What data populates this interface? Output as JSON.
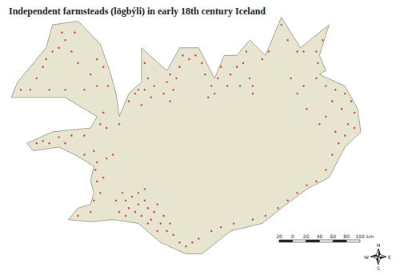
{
  "chart_data": {
    "type": "map",
    "title": "Independent farmsteads (lögbýli) in early 18th century Iceland",
    "xlim": [
      -24.6,
      -13.4
    ],
    "ylim": [
      63.25,
      66.6
    ],
    "tick_labels": false,
    "color": "#c81e2a",
    "coastline": [
      [
        -22.7,
        63.85
      ],
      [
        -22.4,
        64.0
      ],
      [
        -22.0,
        64.05
      ],
      [
        -21.9,
        64.2
      ],
      [
        -22.0,
        64.35
      ],
      [
        -21.9,
        64.55
      ],
      [
        -22.5,
        64.7
      ],
      [
        -23.0,
        64.8
      ],
      [
        -23.8,
        64.75
      ],
      [
        -24.0,
        64.85
      ],
      [
        -23.2,
        65.0
      ],
      [
        -22.0,
        65.05
      ],
      [
        -21.8,
        65.2
      ],
      [
        -22.8,
        65.45
      ],
      [
        -24.5,
        65.45
      ],
      [
        -24.3,
        65.65
      ],
      [
        -23.8,
        65.9
      ],
      [
        -23.4,
        66.1
      ],
      [
        -23.2,
        66.4
      ],
      [
        -22.4,
        66.45
      ],
      [
        -21.7,
        66.15
      ],
      [
        -21.4,
        65.8
      ],
      [
        -21.2,
        65.5
      ],
      [
        -21.1,
        65.2
      ],
      [
        -20.8,
        65.5
      ],
      [
        -20.4,
        65.65
      ],
      [
        -20.4,
        66.1
      ],
      [
        -19.6,
        65.8
      ],
      [
        -19.2,
        66.1
      ],
      [
        -18.6,
        66.1
      ],
      [
        -18.1,
        65.7
      ],
      [
        -17.8,
        66.0
      ],
      [
        -17.4,
        66.0
      ],
      [
        -17.0,
        66.2
      ],
      [
        -16.5,
        66.0
      ],
      [
        -16.0,
        66.5
      ],
      [
        -15.4,
        66.1
      ],
      [
        -14.5,
        66.4
      ],
      [
        -14.8,
        66.0
      ],
      [
        -14.6,
        65.8
      ],
      [
        -14.8,
        65.75
      ],
      [
        -14.0,
        65.6
      ],
      [
        -13.6,
        65.3
      ],
      [
        -13.5,
        65.0
      ],
      [
        -14.0,
        64.8
      ],
      [
        -14.5,
        64.4
      ],
      [
        -15.2,
        64.25
      ],
      [
        -16.0,
        64.0
      ],
      [
        -16.6,
        63.8
      ],
      [
        -17.6,
        63.7
      ],
      [
        -18.5,
        63.4
      ],
      [
        -19.0,
        63.4
      ],
      [
        -19.8,
        63.55
      ],
      [
        -20.5,
        63.8
      ],
      [
        -21.3,
        63.85
      ],
      [
        -22.0,
        63.82
      ]
    ],
    "farmsteads": [
      [
        -21.1,
        63.95
      ],
      [
        -20.9,
        63.9
      ],
      [
        -20.8,
        64.0
      ],
      [
        -20.6,
        63.95
      ],
      [
        -20.5,
        64.05
      ],
      [
        -20.4,
        63.9
      ],
      [
        -20.3,
        64.1
      ],
      [
        -20.2,
        64.0
      ],
      [
        -20.1,
        63.85
      ],
      [
        -20.0,
        63.95
      ],
      [
        -19.9,
        64.05
      ],
      [
        -19.8,
        63.8
      ],
      [
        -19.7,
        63.9
      ],
      [
        -19.6,
        63.7
      ],
      [
        -19.5,
        63.8
      ],
      [
        -19.4,
        63.65
      ],
      [
        -20.7,
        64.15
      ],
      [
        -20.5,
        64.2
      ],
      [
        -20.3,
        64.25
      ],
      [
        -20.9,
        64.1
      ],
      [
        -21.2,
        64.1
      ],
      [
        -21.0,
        64.2
      ],
      [
        -20.2,
        63.8
      ],
      [
        -19.9,
        63.7
      ],
      [
        -19.2,
        63.55
      ],
      [
        -19.0,
        63.5
      ],
      [
        -18.8,
        63.55
      ],
      [
        -18.6,
        63.6
      ],
      [
        -18.2,
        63.7
      ],
      [
        -17.9,
        63.75
      ],
      [
        -17.5,
        63.8
      ],
      [
        -22.4,
        63.9
      ],
      [
        -22.0,
        63.95
      ],
      [
        -21.9,
        64.1
      ],
      [
        -21.7,
        64.2
      ],
      [
        -21.8,
        64.35
      ],
      [
        -21.6,
        64.4
      ],
      [
        -21.85,
        64.5
      ],
      [
        -21.8,
        64.6
      ],
      [
        -21.5,
        64.65
      ],
      [
        -21.3,
        64.7
      ],
      [
        -22.2,
        64.7
      ],
      [
        -21.9,
        64.75
      ],
      [
        -22.8,
        64.85
      ],
      [
        -23.3,
        64.85
      ],
      [
        -23.7,
        64.85
      ],
      [
        -23.5,
        64.88
      ],
      [
        -23.0,
        64.93
      ],
      [
        -22.6,
        64.95
      ],
      [
        -22.2,
        64.95
      ],
      [
        -21.7,
        65.1
      ],
      [
        -21.6,
        65.25
      ],
      [
        -21.5,
        65.05
      ],
      [
        -22.8,
        65.55
      ],
      [
        -23.3,
        65.55
      ],
      [
        -23.9,
        65.55
      ],
      [
        -24.2,
        65.55
      ],
      [
        -23.7,
        65.7
      ],
      [
        -23.5,
        65.85
      ],
      [
        -23.4,
        65.95
      ],
      [
        -23.2,
        66.05
      ],
      [
        -23.0,
        66.1
      ],
      [
        -22.8,
        66.2
      ],
      [
        -22.6,
        66.05
      ],
      [
        -22.4,
        65.9
      ],
      [
        -22.5,
        66.3
      ],
      [
        -22.9,
        66.3
      ],
      [
        -22.0,
        65.75
      ],
      [
        -21.8,
        65.6
      ],
      [
        -22.2,
        65.55
      ],
      [
        -21.45,
        65.6
      ],
      [
        -21.6,
        65.85
      ],
      [
        -21.8,
        65.95
      ],
      [
        -21.1,
        65.1
      ],
      [
        -20.8,
        65.4
      ],
      [
        -20.6,
        65.5
      ],
      [
        -20.4,
        65.35
      ],
      [
        -20.3,
        65.55
      ],
      [
        -20.2,
        65.7
      ],
      [
        -20.5,
        65.55
      ],
      [
        -20.1,
        65.45
      ],
      [
        -20.0,
        65.6
      ],
      [
        -20.3,
        65.9
      ],
      [
        -19.7,
        65.5
      ],
      [
        -19.6,
        65.65
      ],
      [
        -19.5,
        65.75
      ],
      [
        -19.4,
        65.55
      ],
      [
        -19.3,
        65.7
      ],
      [
        -19.2,
        65.85
      ],
      [
        -19.5,
        65.4
      ],
      [
        -19.1,
        66.0
      ],
      [
        -18.9,
        65.95
      ],
      [
        -18.7,
        66.0
      ],
      [
        -18.5,
        65.9
      ],
      [
        -18.4,
        65.75
      ],
      [
        -18.2,
        65.6
      ],
      [
        -18.1,
        65.5
      ],
      [
        -18.3,
        65.45
      ],
      [
        -18.0,
        65.7
      ],
      [
        -17.9,
        65.85
      ],
      [
        -17.7,
        65.6
      ],
      [
        -17.6,
        65.75
      ],
      [
        -17.4,
        65.85
      ],
      [
        -17.3,
        65.6
      ],
      [
        -17.2,
        65.9
      ],
      [
        -17.0,
        65.7
      ],
      [
        -16.9,
        65.5
      ],
      [
        -17.1,
        66.05
      ],
      [
        -16.9,
        65.6
      ],
      [
        -16.6,
        65.95
      ],
      [
        -16.4,
        66.05
      ],
      [
        -16.0,
        66.4
      ],
      [
        -15.8,
        66.2
      ],
      [
        -15.5,
        66.05
      ],
      [
        -15.3,
        66.05
      ],
      [
        -14.9,
        66.05
      ],
      [
        -14.7,
        66.2
      ],
      [
        -14.85,
        65.9
      ],
      [
        -14.9,
        65.7
      ],
      [
        -14.6,
        65.6
      ],
      [
        -14.4,
        65.4
      ],
      [
        -14.3,
        65.55
      ],
      [
        -14.0,
        65.5
      ],
      [
        -13.8,
        65.4
      ],
      [
        -13.7,
        65.25
      ],
      [
        -14.1,
        65.3
      ],
      [
        -14.6,
        65.2
      ],
      [
        -14.8,
        65.1
      ],
      [
        -13.9,
        65.1
      ],
      [
        -13.7,
        65.05
      ],
      [
        -14.0,
        64.95
      ],
      [
        -14.2,
        64.85
      ],
      [
        -14.4,
        64.7
      ],
      [
        -14.6,
        64.5
      ],
      [
        -14.3,
        65.0
      ],
      [
        -15.2,
        65.3
      ],
      [
        -15.5,
        65.5
      ],
      [
        -15.7,
        65.7
      ],
      [
        -15.3,
        65.6
      ],
      [
        -14.9,
        64.35
      ],
      [
        -15.2,
        64.3
      ],
      [
        -15.5,
        64.2
      ],
      [
        -15.8,
        64.1
      ],
      [
        -16.1,
        64.0
      ],
      [
        -16.5,
        63.9
      ],
      [
        -16.9,
        63.85
      ]
    ],
    "scale_bar": {
      "ticks": [
        {
          "value": -20,
          "label": "20"
        },
        0,
        20,
        40,
        60,
        80,
        100
      ],
      "unit": "km"
    },
    "compass": {
      "north": "N",
      "east": "E",
      "south": "S",
      "west": "W"
    }
  }
}
